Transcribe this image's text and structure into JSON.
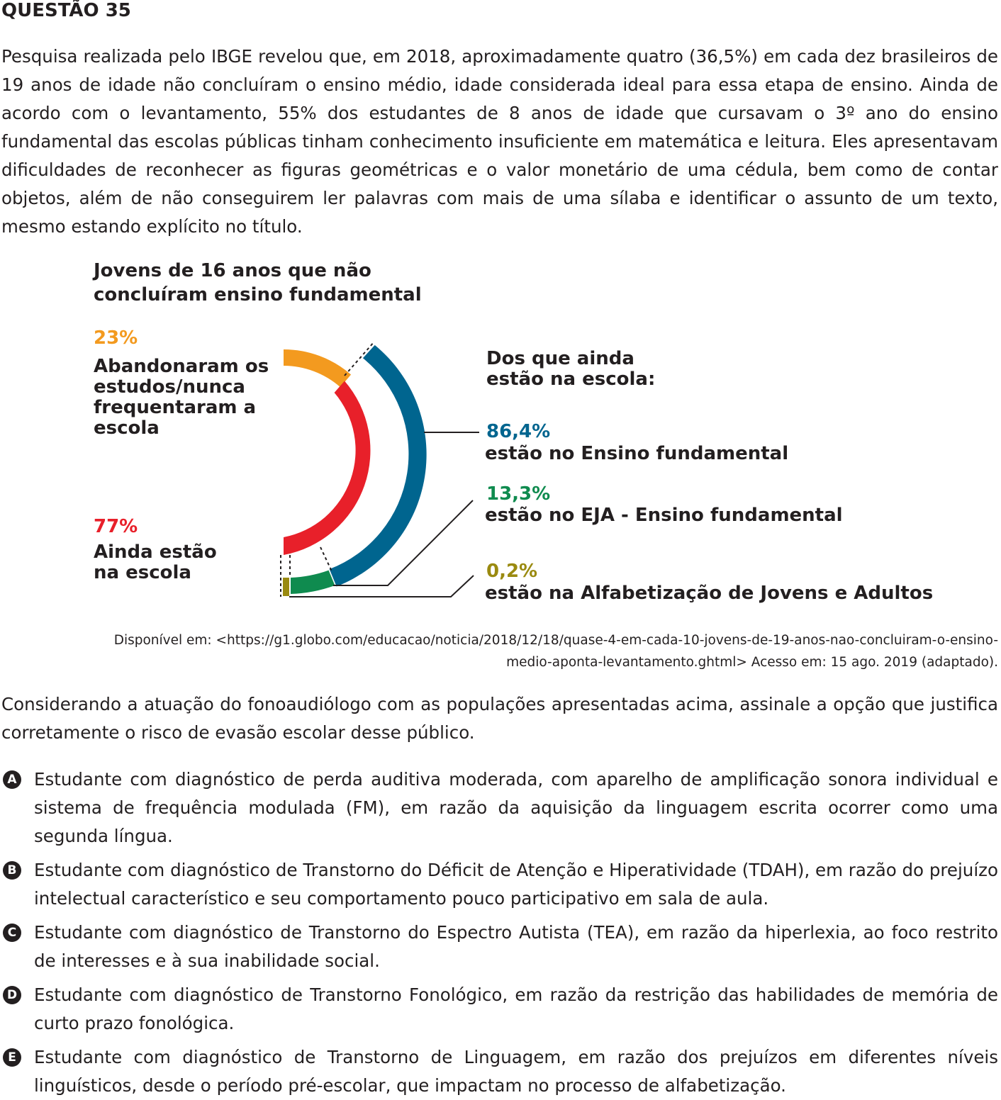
{
  "question": {
    "title": "QUESTÃO 35",
    "intro": "Pesquisa realizada pelo IBGE revelou que, em 2018, aproximadamente quatro (36,5%) em cada dez brasileiros de 19 anos de idade não concluíram o ensino médio, idade considerada ideal para essa etapa de ensino. Ainda de acordo com o levantamento, 55% dos estudantes de 8 anos de idade que cursavam o 3º ano do ensino fundamental das escolas públicas tinham conhecimento insuficiente em matemática e leitura. Eles apresentavam dificuldades de reconhecer as figuras geométricas e o valor monetário de uma cédula,  bem como de contar objetos, além de não conseguirem ler palavras com mais de uma sílaba e identificar o assunto de um texto, mesmo estando explícito no título.",
    "lead": "Considerando a atuação do fonoaudiólogo com as populações apresentadas acima, assinale a opção que justifica corretamente o risco de evasão escolar desse público."
  },
  "infographic": {
    "title_line1": "Jovens de 16 anos que não",
    "title_line2": "concluíram ensino fundamental",
    "left": {
      "abandoned_pct": "23%",
      "abandoned_label": [
        "Abandonaram os",
        "estudos/nunca",
        "frequentaram a",
        "escola"
      ],
      "in_school_pct": "77%",
      "in_school_label": [
        "Ainda estão",
        "na escola"
      ]
    },
    "right": {
      "header": [
        "Dos que ainda",
        "estão na escola:"
      ],
      "items": [
        {
          "pct": "86,4%",
          "label": "estão no Ensino fundamental"
        },
        {
          "pct": "13,3%",
          "label": "estão no EJA - Ensino fundamental"
        },
        {
          "pct": "0,2%",
          "label": "estão na Alfabetização de Jovens e Adultos"
        }
      ]
    },
    "colors": {
      "orange": "#f39a1f",
      "red": "#e8202a",
      "blue": "#00658f",
      "green": "#0f8b4f",
      "olive": "#9a8a10"
    }
  },
  "source": {
    "line1": "Disponível em: <https://g1.globo.com/educacao/noticia/2018/12/18/quase-4-em-cada-10-jovens-de-19-anos-nao-concluiram-o-ensino-",
    "line2": "medio-aponta-levantamento.ghtml> Acesso em: 15 ago. 2019 (adaptado)."
  },
  "options": [
    {
      "letter": "A",
      "text": "Estudante com diagnóstico de perda auditiva moderada, com aparelho de amplificação sonora individual e sistema de frequência modulada (FM), em razão da aquisição da linguagem escrita ocorrer como uma segunda língua."
    },
    {
      "letter": "B",
      "text": "Estudante com diagnóstico de Transtorno do Déficit de Atenção e Hiperatividade (TDAH), em razão do prejuízo intelectual característico e seu comportamento pouco participativo em sala de aula."
    },
    {
      "letter": "C",
      "text": "Estudante com diagnóstico de Transtorno do Espectro Autista (TEA), em razão da hiperlexia, ao foco restrito de interesses e à sua inabilidade social."
    },
    {
      "letter": "D",
      "text": "Estudante com diagnóstico de Transtorno Fonológico, em razão da restrição das habilidades de memória de curto prazo fonológica."
    },
    {
      "letter": "E",
      "text": "Estudante com diagnóstico de Transtorno de Linguagem, em razão dos prejuízos em diferentes níveis linguísticos, desde o período pré-escolar, que impactam no processo de alfabetização."
    }
  ]
}
